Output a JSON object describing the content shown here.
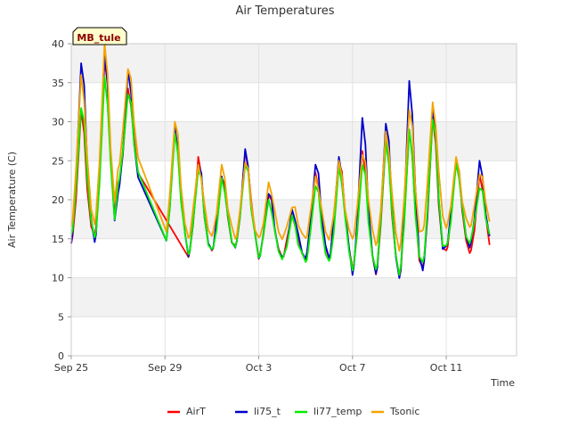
{
  "chart_data": {
    "type": "line",
    "title": "Air Temperatures",
    "xlabel": "Time",
    "ylabel": "Air Temperature (C)",
    "xlim": [
      "2023-09-25",
      "2023-10-14"
    ],
    "ylim": [
      0,
      40
    ],
    "yticks": [
      0,
      5,
      10,
      15,
      20,
      25,
      30,
      35,
      40
    ],
    "xticks": [
      {
        "date": "2023-09-25",
        "label": "Sep 25"
      },
      {
        "date": "2023-09-29",
        "label": "Sep 29"
      },
      {
        "date": "2023-10-03",
        "label": "Oct 3"
      },
      {
        "date": "2023-10-07",
        "label": "Oct 7"
      },
      {
        "date": "2023-10-11",
        "label": "Oct 11"
      }
    ],
    "grid": true,
    "legend_position": "bottom",
    "annotation": "MB_tule",
    "daily_min_max": {
      "dates": [
        "2023-09-25",
        "2023-09-26",
        "2023-09-27",
        "2023-09-28",
        "2023-09-29",
        "2023-09-30",
        "2023-10-01",
        "2023-10-02",
        "2023-10-03",
        "2023-10-04",
        "2023-10-05",
        "2023-10-06",
        "2023-10-07",
        "2023-10-08",
        "2023-10-09",
        "2023-10-10",
        "2023-10-11",
        "2023-10-12"
      ],
      "series": [
        {
          "name": "AirT",
          "color": "#ff0000",
          "min": [
            14.5,
            15.5,
            22.0,
            null,
            null,
            12.8,
            13.5,
            14.0,
            12.5,
            12.5,
            12.5,
            12.5,
            11.0,
            10.5,
            10.0,
            11.5,
            13.5,
            13.0
          ],
          "max": [
            31.0,
            38.0,
            34.0,
            null,
            29.0,
            25.0,
            23.0,
            26.0,
            21.0,
            18.0,
            23.0,
            25.0,
            26.0,
            28.0,
            29.0,
            30.0,
            25.0,
            23.0
          ]
        },
        {
          "name": "li75_t",
          "color": "#0000cc",
          "min": [
            14.5,
            14.5,
            21.0,
            16.0,
            14.0,
            12.8,
            13.5,
            14.0,
            12.5,
            12.5,
            12.5,
            12.5,
            10.5,
            10.5,
            9.8,
            11.0,
            14.0,
            14.0
          ],
          "max": [
            38.0,
            38.8,
            36.0,
            null,
            29.0,
            25.0,
            23.0,
            26.0,
            21.0,
            18.5,
            25.0,
            25.5,
            30.0,
            30.0,
            35.0,
            32.0,
            25.0,
            24.5
          ]
        },
        {
          "name": "li77_temp",
          "color": "#00ee00",
          "min": [
            15.5,
            15.0,
            22.0,
            16.0,
            14.0,
            13.0,
            13.5,
            14.0,
            12.5,
            12.5,
            12.0,
            12.0,
            11.0,
            11.0,
            10.5,
            12.0,
            14.0,
            14.5
          ],
          "max": [
            32.0,
            35.5,
            34.0,
            null,
            28.0,
            24.0,
            22.5,
            25.0,
            20.0,
            17.5,
            22.0,
            24.0,
            25.0,
            27.5,
            28.5,
            30.5,
            24.5,
            22.0
          ]
        },
        {
          "name": "Tsonic",
          "color": "#f5a300",
          "min": [
            16.5,
            17.0,
            24.0,
            18.0,
            15.0,
            15.0,
            15.5,
            15.0,
            15.0,
            15.0,
            15.0,
            15.0,
            15.0,
            14.0,
            13.5,
            16.0,
            16.5,
            16.5
          ],
          "max": [
            36.0,
            39.5,
            37.0,
            null,
            30.5,
            24.5,
            24.0,
            25.0,
            22.0,
            19.5,
            23.0,
            24.5,
            26.0,
            28.5,
            32.0,
            32.5,
            25.0,
            23.5
          ]
        }
      ]
    },
    "series": [
      {
        "name": "AirT",
        "color": "#ff0000"
      },
      {
        "name": "li75_t",
        "color": "#0000cc"
      },
      {
        "name": "li77_temp",
        "color": "#00ee00"
      },
      {
        "name": "Tsonic",
        "color": "#f5a300"
      }
    ]
  }
}
